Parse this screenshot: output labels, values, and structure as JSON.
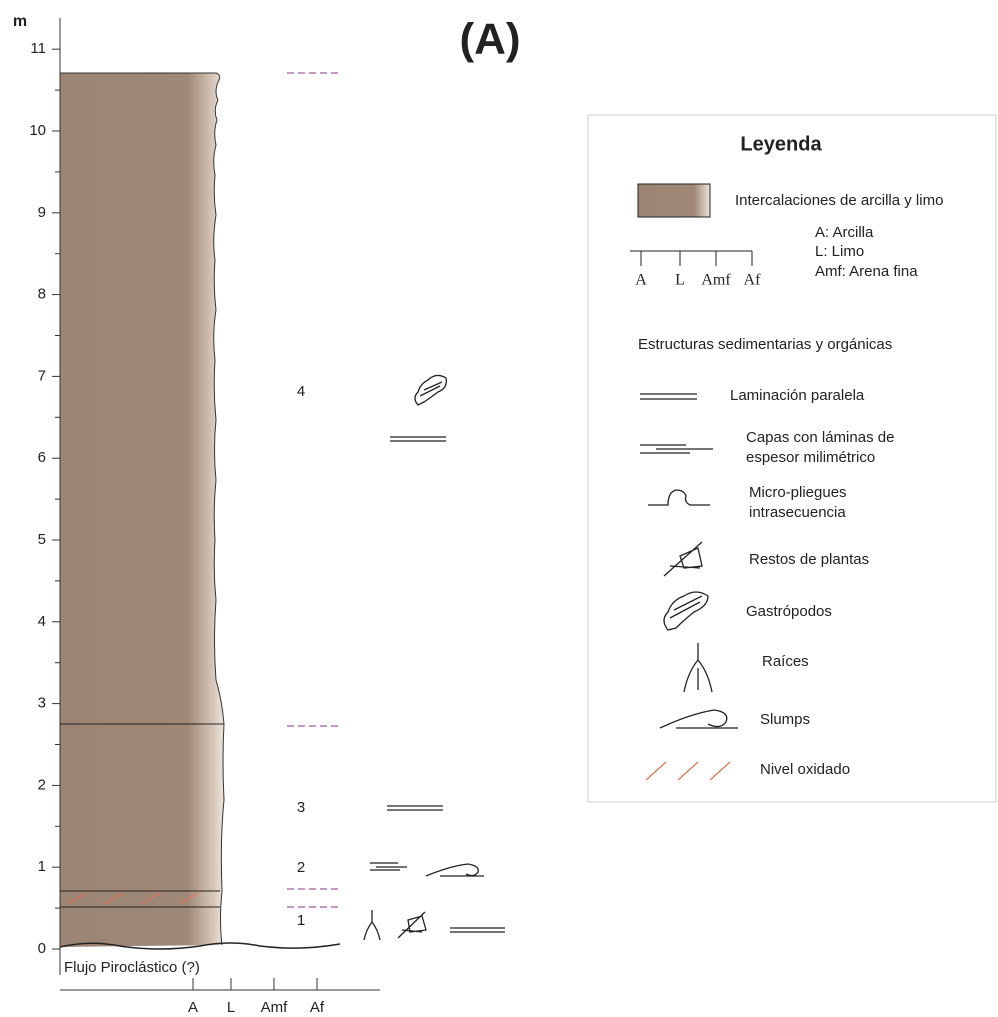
{
  "title": "(A)",
  "axis": {
    "unit": "m",
    "ticks": [
      0,
      1,
      2,
      3,
      4,
      5,
      6,
      7,
      8,
      9,
      10,
      11
    ],
    "grain_labels": [
      "A",
      "L",
      "Amf",
      "Af"
    ]
  },
  "column": {
    "units": [
      1,
      2,
      3,
      4
    ],
    "base": "Flujo Piroclástico (?)"
  },
  "legend": {
    "title": "Leyenda",
    "lithology": "Intercalaciones de arcilla y limo",
    "scale_labels": [
      "A",
      "L",
      "Amf",
      "Af"
    ],
    "scale_notes": [
      "A: Arcilla",
      "L: Limo",
      "Amf: Arena fina"
    ],
    "structures_title": "Estructuras sedimentarias y orgánicas",
    "structures": [
      [
        "Laminación paralela"
      ],
      [
        "Capas con láminas de",
        "espesor milimétrico"
      ],
      [
        "Micro-pliegues",
        "intrasecuencia"
      ],
      [
        "Restos de plantas"
      ],
      [
        "Gastrópodos"
      ],
      [
        "Raíces"
      ],
      [
        "Slumps"
      ],
      [
        "Nivel oxidado"
      ]
    ]
  }
}
